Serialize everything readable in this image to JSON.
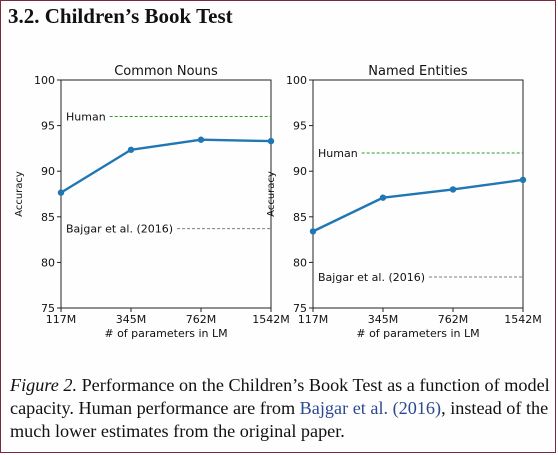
{
  "section_title": "3.2. Children’s Book Test",
  "caption": {
    "figure_label": "Figure 2.",
    "text_before": " Performance on the Children’s Book Test as a function of model capacity. Human performance are from ",
    "citation_author": "Bajgar et al.",
    "citation_year": "(2016)",
    "text_after": ", instead of the much lower estimates from the original paper."
  },
  "colors": {
    "line": "#1f77b4",
    "human_line": "#2ca02c",
    "baseline_line": "#7f7f7f",
    "frame_border": "#7a2a3a",
    "citation": "#2c4a8f"
  },
  "chart_data": [
    {
      "type": "line",
      "title": "Common Nouns",
      "xlabel": "# of parameters in LM",
      "ylabel": "Accuracy",
      "categories": [
        "117M",
        "345M",
        "762M",
        "1542M"
      ],
      "values": [
        87.65,
        92.35,
        93.45,
        93.3
      ],
      "ylim": [
        75,
        100
      ],
      "yticks": [
        "75",
        "80",
        "85",
        "90",
        "95",
        "100"
      ],
      "reference_lines": [
        {
          "label": "Human",
          "value": 96,
          "style": "dashed",
          "color": "#2ca02c"
        },
        {
          "label": "Bajgar et al. (2016)",
          "value": 83.7,
          "style": "dashed",
          "color": "#7f7f7f"
        }
      ],
      "grid": false
    },
    {
      "type": "line",
      "title": "Named Entities",
      "xlabel": "# of parameters in LM",
      "ylabel": "Accuracy",
      "categories": [
        "117M",
        "345M",
        "762M",
        "1542M"
      ],
      "values": [
        83.4,
        87.1,
        88.0,
        89.05
      ],
      "ylim": [
        75,
        100
      ],
      "yticks": [
        "75",
        "80",
        "85",
        "90",
        "95",
        "100"
      ],
      "reference_lines": [
        {
          "label": "Human",
          "value": 92,
          "style": "dashed",
          "color": "#2ca02c"
        },
        {
          "label": "Bajgar et al. (2016)",
          "value": 78.4,
          "style": "dashed",
          "color": "#7f7f7f"
        }
      ],
      "grid": false
    }
  ]
}
